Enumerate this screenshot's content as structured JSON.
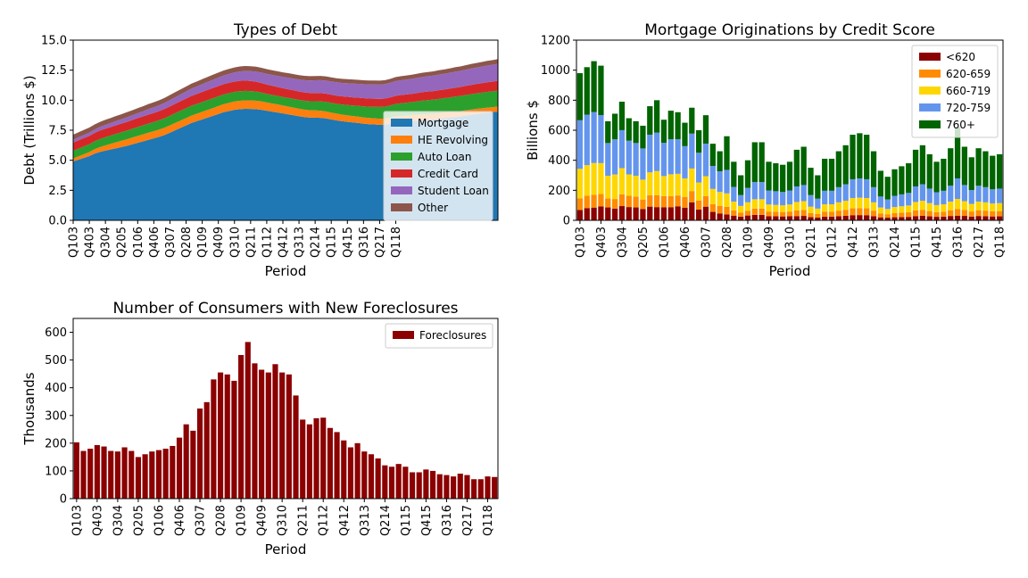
{
  "chart_data": [
    {
      "type": "area",
      "title": "Types of Debt",
      "xlabel": "Period",
      "ylabel": "Debt (Trillions $)",
      "ylim": [
        0,
        15
      ],
      "yticks": [
        "0.0",
        "2.5",
        "5.0",
        "7.5",
        "10.0",
        "12.5",
        "15.0"
      ],
      "x_tick_labels": [
        "Q103",
        "Q403",
        "Q304",
        "Q205",
        "Q106",
        "Q406",
        "Q307",
        "Q208",
        "Q109",
        "Q409",
        "Q310",
        "Q211",
        "Q112",
        "Q412",
        "Q313",
        "Q214",
        "Q115",
        "Q415",
        "Q316",
        "Q217",
        "Q118"
      ],
      "legend_position": "lower-right",
      "colors": [
        "#1f77b4",
        "#ff7f0e",
        "#2ca02c",
        "#d62728",
        "#9467bd",
        "#8c564b"
      ],
      "series": [
        {
          "name": "Mortgage",
          "values": [
            4.9,
            5.05,
            5.2,
            5.35,
            5.55,
            5.7,
            5.8,
            5.9,
            6.0,
            6.1,
            6.2,
            6.32,
            6.45,
            6.57,
            6.7,
            6.82,
            6.95,
            7.1,
            7.3,
            7.5,
            7.7,
            7.9,
            8.1,
            8.25,
            8.4,
            8.55,
            8.7,
            8.85,
            9.0,
            9.1,
            9.2,
            9.25,
            9.28,
            9.27,
            9.25,
            9.2,
            9.12,
            9.05,
            8.98,
            8.9,
            8.82,
            8.74,
            8.66,
            8.6,
            8.55,
            8.55,
            8.53,
            8.48,
            8.4,
            8.32,
            8.25,
            8.2,
            8.15,
            8.1,
            8.05,
            8.0,
            7.98,
            7.95,
            7.97,
            8.05,
            8.15,
            8.2,
            8.22,
            8.25,
            8.3,
            8.35,
            8.38,
            8.4,
            8.45,
            8.5,
            8.55,
            8.6,
            8.65,
            8.72,
            8.78,
            8.85,
            8.9,
            8.95,
            9.0,
            9.05
          ]
        },
        {
          "name": "HE Revolving",
          "values": [
            0.25,
            0.28,
            0.3,
            0.33,
            0.37,
            0.4,
            0.44,
            0.47,
            0.5,
            0.53,
            0.55,
            0.57,
            0.58,
            0.59,
            0.6,
            0.6,
            0.61,
            0.61,
            0.61,
            0.61,
            0.61,
            0.61,
            0.62,
            0.62,
            0.63,
            0.64,
            0.65,
            0.66,
            0.67,
            0.68,
            0.69,
            0.7,
            0.71,
            0.71,
            0.71,
            0.7,
            0.69,
            0.68,
            0.67,
            0.66,
            0.65,
            0.64,
            0.63,
            0.62,
            0.61,
            0.6,
            0.59,
            0.58,
            0.57,
            0.56,
            0.55,
            0.54,
            0.53,
            0.53,
            0.52,
            0.52,
            0.51,
            0.51,
            0.5,
            0.5,
            0.5,
            0.49,
            0.49,
            0.49,
            0.48,
            0.48,
            0.47,
            0.47,
            0.46,
            0.46,
            0.45,
            0.45,
            0.44,
            0.44,
            0.44,
            0.43,
            0.43,
            0.43,
            0.42,
            0.42
          ]
        },
        {
          "name": "Auto Loan",
          "values": [
            0.64,
            0.64,
            0.65,
            0.65,
            0.66,
            0.67,
            0.68,
            0.69,
            0.7,
            0.71,
            0.72,
            0.73,
            0.74,
            0.75,
            0.76,
            0.77,
            0.78,
            0.79,
            0.8,
            0.81,
            0.82,
            0.82,
            0.82,
            0.82,
            0.82,
            0.82,
            0.81,
            0.81,
            0.81,
            0.81,
            0.8,
            0.8,
            0.79,
            0.78,
            0.76,
            0.74,
            0.72,
            0.71,
            0.71,
            0.71,
            0.72,
            0.73,
            0.73,
            0.74,
            0.75,
            0.76,
            0.78,
            0.8,
            0.81,
            0.82,
            0.84,
            0.86,
            0.88,
            0.9,
            0.92,
            0.94,
            0.96,
            0.98,
            1.0,
            1.02,
            1.04,
            1.06,
            1.08,
            1.1,
            1.12,
            1.14,
            1.16,
            1.18,
            1.2,
            1.21,
            1.23,
            1.25,
            1.26,
            1.27,
            1.28,
            1.29,
            1.3,
            1.31,
            1.32,
            1.33
          ]
        },
        {
          "name": "Credit Card",
          "values": [
            0.68,
            0.69,
            0.7,
            0.7,
            0.7,
            0.71,
            0.71,
            0.71,
            0.72,
            0.72,
            0.73,
            0.73,
            0.74,
            0.74,
            0.75,
            0.75,
            0.76,
            0.77,
            0.78,
            0.79,
            0.8,
            0.81,
            0.82,
            0.83,
            0.84,
            0.85,
            0.86,
            0.86,
            0.86,
            0.86,
            0.86,
            0.86,
            0.85,
            0.84,
            0.82,
            0.8,
            0.78,
            0.76,
            0.74,
            0.73,
            0.72,
            0.71,
            0.7,
            0.69,
            0.69,
            0.69,
            0.69,
            0.68,
            0.68,
            0.68,
            0.68,
            0.68,
            0.68,
            0.68,
            0.68,
            0.68,
            0.68,
            0.67,
            0.67,
            0.67,
            0.68,
            0.68,
            0.69,
            0.69,
            0.7,
            0.7,
            0.71,
            0.71,
            0.72,
            0.72,
            0.73,
            0.74,
            0.75,
            0.76,
            0.77,
            0.78,
            0.79,
            0.8,
            0.81,
            0.82
          ]
        },
        {
          "name": "Student Loan",
          "values": [
            0.24,
            0.25,
            0.26,
            0.27,
            0.28,
            0.3,
            0.32,
            0.33,
            0.35,
            0.36,
            0.38,
            0.39,
            0.41,
            0.43,
            0.45,
            0.47,
            0.48,
            0.5,
            0.52,
            0.54,
            0.56,
            0.58,
            0.6,
            0.62,
            0.64,
            0.66,
            0.68,
            0.7,
            0.72,
            0.74,
            0.76,
            0.78,
            0.8,
            0.82,
            0.84,
            0.86,
            0.88,
            0.9,
            0.92,
            0.94,
            0.96,
            0.98,
            1.0,
            1.02,
            1.04,
            1.06,
            1.08,
            1.09,
            1.1,
            1.11,
            1.12,
            1.13,
            1.14,
            1.15,
            1.16,
            1.17,
            1.18,
            1.19,
            1.2,
            1.21,
            1.22,
            1.23,
            1.24,
            1.25,
            1.26,
            1.27,
            1.28,
            1.29,
            1.3,
            1.31,
            1.32,
            1.33,
            1.34,
            1.35,
            1.36,
            1.37,
            1.38,
            1.39,
            1.4,
            1.41
          ]
        },
        {
          "name": "Other",
          "values": [
            0.42,
            0.42,
            0.42,
            0.42,
            0.42,
            0.42,
            0.42,
            0.42,
            0.42,
            0.42,
            0.42,
            0.42,
            0.42,
            0.42,
            0.42,
            0.42,
            0.42,
            0.42,
            0.42,
            0.42,
            0.42,
            0.42,
            0.42,
            0.42,
            0.42,
            0.42,
            0.42,
            0.42,
            0.42,
            0.42,
            0.42,
            0.42,
            0.42,
            0.41,
            0.41,
            0.4,
            0.4,
            0.39,
            0.39,
            0.38,
            0.38,
            0.37,
            0.37,
            0.36,
            0.36,
            0.35,
            0.35,
            0.35,
            0.34,
            0.34,
            0.34,
            0.34,
            0.34,
            0.34,
            0.33,
            0.33,
            0.33,
            0.33,
            0.33,
            0.33,
            0.34,
            0.34,
            0.34,
            0.34,
            0.35,
            0.35,
            0.35,
            0.35,
            0.36,
            0.36,
            0.36,
            0.37,
            0.37,
            0.37,
            0.38,
            0.38,
            0.38,
            0.39,
            0.39,
            0.39
          ]
        }
      ]
    },
    {
      "type": "bar",
      "stacked": true,
      "title": "Mortgage Originations by Credit Score",
      "xlabel": "Period",
      "ylabel": "Billions $",
      "ylim": [
        0,
        1200
      ],
      "yticks": [
        "0",
        "200",
        "400",
        "600",
        "800",
        "1000",
        "1200"
      ],
      "x_tick_labels": [
        "Q103",
        "Q403",
        "Q304",
        "Q205",
        "Q106",
        "Q406",
        "Q307",
        "Q208",
        "Q109",
        "Q409",
        "Q310",
        "Q211",
        "Q112",
        "Q412",
        "Q313",
        "Q214",
        "Q115",
        "Q415",
        "Q316",
        "Q217",
        "Q118"
      ],
      "legend_position": "top-right",
      "colors": [
        "#8b0000",
        "#ff8c00",
        "#ffd700",
        "#6495ed",
        "#006400"
      ],
      "totals": [
        980,
        1020,
        1060,
        1030,
        660,
        710,
        790,
        680,
        660,
        630,
        760,
        800,
        670,
        730,
        720,
        650,
        750,
        600,
        700,
        510,
        460,
        560,
        390,
        300,
        400,
        520,
        520,
        390,
        380,
        370,
        390,
        470,
        490,
        350,
        300,
        410,
        410,
        460,
        500,
        570,
        580,
        570,
        460,
        330,
        290,
        340,
        360,
        380,
        470,
        500,
        440,
        390,
        410,
        480,
        620,
        490,
        420,
        480,
        460,
        430,
        440
      ],
      "shares": [
        [
          0.07,
          0.08,
          0.08,
          0.09,
          0.13,
          0.11,
          0.12,
          0.13,
          0.13,
          0.12,
          0.12,
          0.11,
          0.13,
          0.12,
          0.13,
          0.13,
          0.16,
          0.12,
          0.13,
          0.11,
          0.1,
          0.07,
          0.08,
          0.08,
          0.08,
          0.07,
          0.07,
          0.07,
          0.07,
          0.07,
          0.07,
          0.06,
          0.06,
          0.06,
          0.06,
          0.06,
          0.06,
          0.06,
          0.06,
          0.06,
          0.06,
          0.06,
          0.06,
          0.06,
          0.06,
          0.06,
          0.06,
          0.06,
          0.06,
          0.06,
          0.06,
          0.06,
          0.06,
          0.06,
          0.05,
          0.06,
          0.06,
          0.06,
          0.06,
          0.06,
          0.06
        ],
        [
          0.08,
          0.08,
          0.08,
          0.08,
          0.09,
          0.09,
          0.1,
          0.11,
          0.11,
          0.1,
          0.1,
          0.1,
          0.11,
          0.1,
          0.1,
          0.11,
          0.1,
          0.1,
          0.1,
          0.1,
          0.11,
          0.09,
          0.09,
          0.09,
          0.08,
          0.08,
          0.08,
          0.08,
          0.08,
          0.08,
          0.08,
          0.08,
          0.08,
          0.08,
          0.08,
          0.08,
          0.08,
          0.08,
          0.08,
          0.08,
          0.08,
          0.08,
          0.08,
          0.08,
          0.08,
          0.08,
          0.08,
          0.08,
          0.08,
          0.08,
          0.08,
          0.08,
          0.08,
          0.08,
          0.07,
          0.08,
          0.08,
          0.08,
          0.08,
          0.08,
          0.08
        ],
        [
          0.2,
          0.2,
          0.2,
          0.2,
          0.23,
          0.23,
          0.22,
          0.21,
          0.21,
          0.21,
          0.2,
          0.2,
          0.2,
          0.2,
          0.2,
          0.19,
          0.2,
          0.2,
          0.19,
          0.2,
          0.2,
          0.16,
          0.15,
          0.15,
          0.14,
          0.12,
          0.12,
          0.12,
          0.12,
          0.12,
          0.12,
          0.12,
          0.12,
          0.12,
          0.12,
          0.12,
          0.12,
          0.12,
          0.12,
          0.12,
          0.12,
          0.12,
          0.12,
          0.12,
          0.12,
          0.12,
          0.12,
          0.12,
          0.12,
          0.12,
          0.12,
          0.12,
          0.12,
          0.12,
          0.11,
          0.12,
          0.12,
          0.12,
          0.12,
          0.12,
          0.12
        ],
        [
          0.33,
          0.33,
          0.32,
          0.31,
          0.33,
          0.33,
          0.32,
          0.33,
          0.33,
          0.33,
          0.33,
          0.32,
          0.33,
          0.32,
          0.32,
          0.33,
          0.31,
          0.33,
          0.31,
          0.3,
          0.3,
          0.28,
          0.25,
          0.24,
          0.24,
          0.22,
          0.22,
          0.24,
          0.24,
          0.24,
          0.24,
          0.22,
          0.22,
          0.22,
          0.22,
          0.22,
          0.22,
          0.22,
          0.22,
          0.22,
          0.22,
          0.22,
          0.22,
          0.22,
          0.22,
          0.22,
          0.22,
          0.22,
          0.22,
          0.22,
          0.22,
          0.22,
          0.22,
          0.22,
          0.22,
          0.22,
          0.22,
          0.22,
          0.22,
          0.22,
          0.22
        ]
      ],
      "series_names": [
        "<620",
        "620-659",
        "660-719",
        "720-759",
        "760+"
      ]
    },
    {
      "type": "bar",
      "title": "Number of Consumers with New Foreclosures",
      "xlabel": "Period",
      "ylabel": "Thousands",
      "ylim": [
        0,
        650
      ],
      "yticks": [
        "0",
        "100",
        "200",
        "300",
        "400",
        "500",
        "600"
      ],
      "x_tick_labels": [
        "Q103",
        "Q403",
        "Q304",
        "Q205",
        "Q106",
        "Q406",
        "Q307",
        "Q208",
        "Q109",
        "Q409",
        "Q310",
        "Q211",
        "Q112",
        "Q412",
        "Q313",
        "Q214",
        "Q115",
        "Q415",
        "Q316",
        "Q217",
        "Q118"
      ],
      "legend_position": "top-right",
      "colors": [
        "#8b0000"
      ],
      "series": [
        {
          "name": "Foreclosures",
          "values": [
            203,
            172,
            180,
            193,
            188,
            172,
            170,
            185,
            172,
            150,
            160,
            170,
            175,
            180,
            190,
            220,
            268,
            245,
            325,
            348,
            430,
            455,
            448,
            425,
            518,
            565,
            488,
            465,
            455,
            485,
            455,
            448,
            372,
            285,
            268,
            290,
            292,
            255,
            240,
            210,
            185,
            200,
            170,
            160,
            145,
            120,
            115,
            125,
            115,
            95,
            95,
            105,
            100,
            88,
            85,
            80,
            90,
            85,
            70,
            70,
            80,
            78
          ]
        }
      ]
    }
  ]
}
